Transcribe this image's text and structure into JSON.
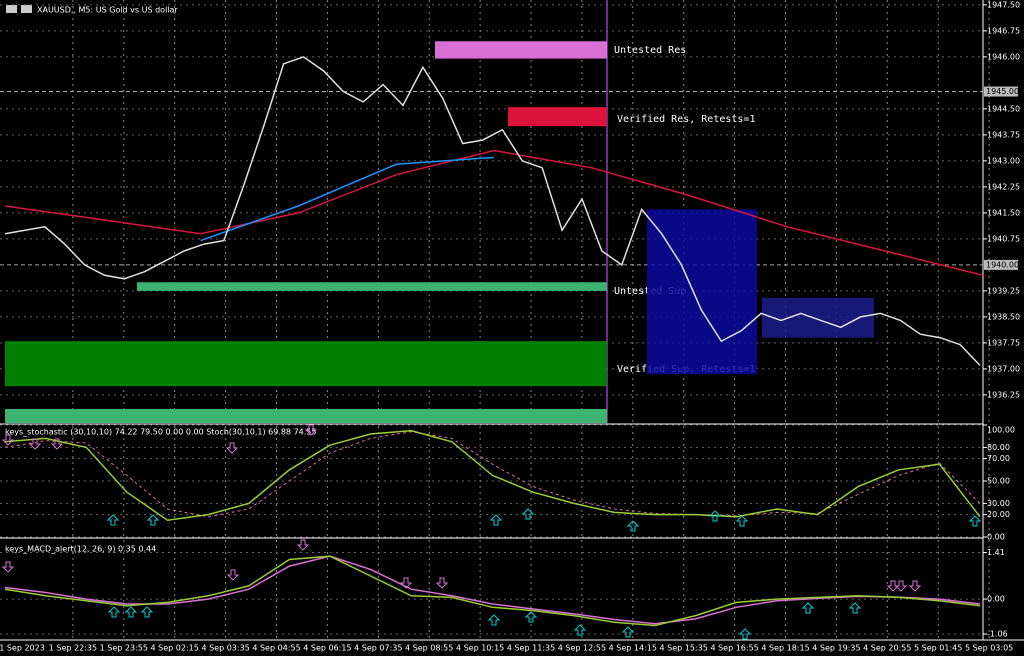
{
  "header": {
    "title": "XAUUSD., M5: US Gold vs US dollar"
  },
  "price_panel": {
    "ylim": [
      1935.44,
      1947.64
    ],
    "yticks": [
      {
        "value": 1947.5,
        "label": "1947.50"
      },
      {
        "value": 1946.75,
        "label": "1946.75"
      },
      {
        "value": 1946,
        "label": "1946.00"
      },
      {
        "value": 1944.5,
        "label": "1944.50"
      },
      {
        "value": 1943.75,
        "label": "1943.75"
      },
      {
        "value": 1943,
        "label": "1943.00"
      },
      {
        "value": 1942.25,
        "label": "1942.25"
      },
      {
        "value": 1941.5,
        "label": "1941.50"
      },
      {
        "value": 1940.75,
        "label": "1940.75"
      },
      {
        "value": 1939.25,
        "label": "1939.25"
      },
      {
        "value": 1938.5,
        "label": "1938.50"
      },
      {
        "value": 1937.75,
        "label": "1937.75"
      },
      {
        "value": 1937,
        "label": "1937.00"
      },
      {
        "value": 1936.25,
        "label": "1936.25"
      }
    ],
    "price_marks": [
      {
        "value": 1945,
        "label": "1945.00"
      },
      {
        "value": 1940,
        "label": "1940.00"
      }
    ],
    "close": [
      1940.9,
      1941.0,
      1941.1,
      1940.6,
      1940.0,
      1939.7,
      1939.6,
      1939.8,
      1940.1,
      1940.4,
      1940.6,
      1940.7,
      1942.3,
      1944.0,
      1945.8,
      1946.0,
      1945.6,
      1945.0,
      1944.7,
      1945.2,
      1944.6,
      1945.7,
      1944.8,
      1943.5,
      1943.6,
      1943.9,
      1943.0,
      1942.8,
      1941.0,
      1941.9,
      1940.4,
      1940.0,
      1941.6,
      1940.9,
      1940.0,
      1938.7,
      1937.8,
      1938.1,
      1938.6,
      1938.4,
      1938.6,
      1938.4,
      1938.2,
      1938.5,
      1938.6,
      1938.4,
      1938.0,
      1937.9,
      1937.7,
      1937.1
    ],
    "slow_ma": [
      1941.7,
      1941.3,
      1940.9,
      1941.5,
      1942.6,
      1943.3,
      1942.8,
      1942.0,
      1941.1,
      1940.4,
      1939.7
    ],
    "fast_ma": [
      null,
      null,
      1940.7,
      1941.7,
      1942.9,
      1943.1,
      null,
      null,
      null,
      null,
      null
    ],
    "zones": [
      {
        "label": "Untested Res",
        "top": 1946.45,
        "bottom": 1945.95,
        "color": "#da70d6"
      },
      {
        "label": "Verified Res, Retests=1",
        "top": 1944.55,
        "bottom": 1944.0,
        "color": "#dc143c"
      },
      {
        "label": "Untested Sup",
        "top": 1939.5,
        "bottom": 1939.25,
        "color": "#3cb371"
      },
      {
        "label": "Verified Sup, Retests=1",
        "top": 1937.8,
        "bottom": 1936.5,
        "color": "#008000"
      }
    ],
    "boxes": [
      {
        "top": 1941.6,
        "bottom": 1936.85
      },
      {
        "top": 1939.05,
        "bottom": 1937.9
      }
    ]
  },
  "stoch_panel": {
    "title": "keys_stochastic (30,10,10) 74.22 79.50 0.00 0.00 Stoch(30,10,1) 69.88 74.55",
    "ylim": [
      0,
      100
    ],
    "yticks": [
      {
        "value": 100,
        "label": "100.00"
      },
      {
        "value": 80,
        "label": "80.00"
      },
      {
        "value": 70,
        "label": "70.00"
      },
      {
        "value": 50,
        "label": "50.00"
      },
      {
        "value": 30,
        "label": "30.00"
      },
      {
        "value": 20,
        "label": "20.00"
      },
      {
        "value": 0,
        "label": "0.00"
      }
    ],
    "main": [
      85,
      88,
      80,
      40,
      15,
      20,
      30,
      60,
      82,
      92,
      95,
      85,
      55,
      40,
      30,
      22,
      20,
      20,
      18,
      25,
      20,
      45,
      60,
      65,
      18
    ],
    "signal": [
      80,
      86,
      84,
      55,
      25,
      18,
      25,
      50,
      75,
      88,
      94,
      88,
      65,
      45,
      33,
      25,
      21,
      20,
      19,
      22,
      21,
      38,
      55,
      66,
      30
    ]
  },
  "macd_panel": {
    "title": "keys_MACD_alert(12, 26, 9) 0.35 0.44",
    "ylim": [
      -1.24,
      1.79
    ],
    "yticks": [
      {
        "value": 1.41,
        "label": "1.41"
      },
      {
        "value": 0,
        "label": "0.00"
      },
      {
        "value": -1.06,
        "label": "-1.06"
      }
    ],
    "main": [
      0.3,
      0.1,
      -0.05,
      -0.2,
      -0.1,
      0.1,
      0.4,
      1.2,
      1.3,
      0.7,
      0.1,
      0.05,
      -0.25,
      -0.35,
      -0.5,
      -0.7,
      -0.8,
      -0.5,
      -0.1,
      0.0,
      0.05,
      0.1,
      0.05,
      -0.05,
      -0.2
    ],
    "signal": [
      0.35,
      0.2,
      0.0,
      -0.15,
      -0.15,
      0.0,
      0.3,
      1.0,
      1.3,
      0.9,
      0.3,
      0.1,
      -0.15,
      -0.3,
      -0.45,
      -0.62,
      -0.75,
      -0.6,
      -0.25,
      -0.05,
      0.02,
      0.08,
      0.06,
      0.0,
      -0.15
    ]
  },
  "time_axis": [
    "1 Sep 2023",
    "1 Sep 22:35",
    "1 Sep 23:55",
    "4 Sep 02:15",
    "4 Sep 03:35",
    "4 Sep 04:55",
    "4 Sep 06:15",
    "4 Sep 07:35",
    "4 Sep 08:55",
    "4 Sep 10:15",
    "4 Sep 11:35",
    "4 Sep 12:55",
    "4 Sep 14:15",
    "4 Sep 15:35",
    "4 Sep 16:55",
    "4 Sep 18:15",
    "4 Sep 19:35",
    "4 Sep 20:55",
    "5 Sep 01:45",
    "5 Sep 03:05"
  ]
}
